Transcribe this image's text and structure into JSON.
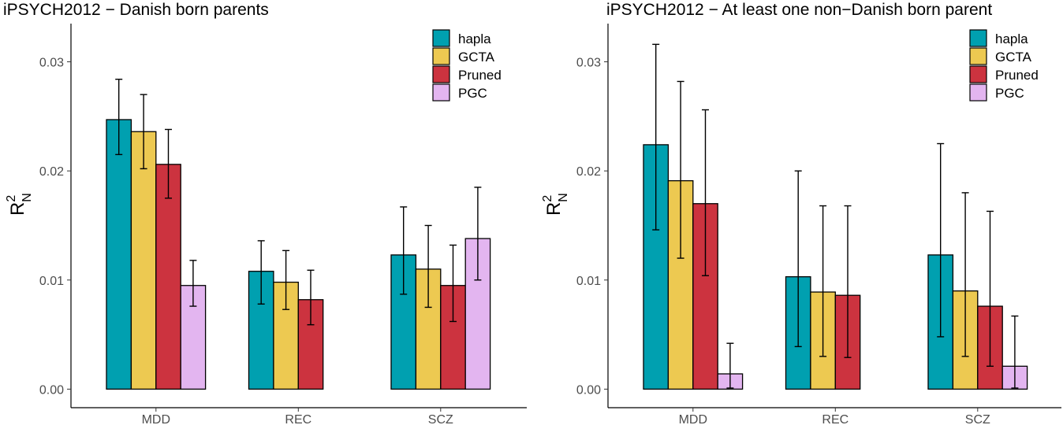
{
  "chart_data": [
    {
      "type": "bar",
      "title": "iPSYCH2012 − Danish born parents",
      "xlabel": "",
      "ylabel": "R",
      "ylabel_sup": "2",
      "ylabel_sub": "N",
      "categories": [
        "MDD",
        "REC",
        "SCZ"
      ],
      "yticks": [
        0.0,
        0.01,
        0.02,
        0.03
      ],
      "ytick_labels": [
        "0.00",
        "0.01",
        "0.02",
        "0.03"
      ],
      "ylim": [
        -0.0017,
        0.0335
      ],
      "grid": false,
      "legend_position": "top-right",
      "series": [
        {
          "name": "hapla",
          "color": "#00A0B0",
          "values": [
            0.0247,
            0.0108,
            0.0123
          ],
          "lower": [
            0.0215,
            0.0078,
            0.0087
          ],
          "upper": [
            0.0284,
            0.0136,
            0.0167
          ]
        },
        {
          "name": "GCTA",
          "color": "#EDC951",
          "values": [
            0.0236,
            0.0098,
            0.011
          ],
          "lower": [
            0.0202,
            0.0073,
            0.0075
          ],
          "upper": [
            0.027,
            0.0127,
            0.015
          ]
        },
        {
          "name": "Pruned",
          "color": "#CC333F",
          "values": [
            0.0206,
            0.0082,
            0.0095
          ],
          "lower": [
            0.0175,
            0.0059,
            0.0062
          ],
          "upper": [
            0.0238,
            0.0109,
            0.0132
          ]
        },
        {
          "name": "PGC",
          "color": "#E3B5F0",
          "values": [
            0.0095,
            null,
            0.0138
          ],
          "lower": [
            0.0076,
            null,
            0.01
          ],
          "upper": [
            0.0118,
            null,
            0.0185
          ]
        }
      ]
    },
    {
      "type": "bar",
      "title": "iPSYCH2012 − At least one non−Danish born parent",
      "xlabel": "",
      "ylabel": "R",
      "ylabel_sup": "2",
      "ylabel_sub": "N",
      "categories": [
        "MDD",
        "REC",
        "SCZ"
      ],
      "yticks": [
        0.0,
        0.01,
        0.02,
        0.03
      ],
      "ytick_labels": [
        "0.00",
        "0.01",
        "0.02",
        "0.03"
      ],
      "ylim": [
        -0.0017,
        0.0335
      ],
      "grid": false,
      "legend_position": "top-right",
      "series": [
        {
          "name": "hapla",
          "color": "#00A0B0",
          "values": [
            0.0224,
            0.0103,
            0.0123
          ],
          "lower": [
            0.0146,
            0.0039,
            0.0048
          ],
          "upper": [
            0.0316,
            0.02,
            0.0225
          ]
        },
        {
          "name": "GCTA",
          "color": "#EDC951",
          "values": [
            0.0191,
            0.0089,
            0.009
          ],
          "lower": [
            0.012,
            0.003,
            0.003
          ],
          "upper": [
            0.0282,
            0.0168,
            0.018
          ]
        },
        {
          "name": "Pruned",
          "color": "#CC333F",
          "values": [
            0.017,
            0.0086,
            0.0076
          ],
          "lower": [
            0.0104,
            0.0029,
            0.0021
          ],
          "upper": [
            0.0256,
            0.0168,
            0.0163
          ]
        },
        {
          "name": "PGC",
          "color": "#E3B5F0",
          "values": [
            0.0014,
            null,
            0.0021
          ],
          "lower": [
            0.0001,
            null,
            0.0001
          ],
          "upper": [
            0.0042,
            null,
            0.0067
          ]
        }
      ]
    }
  ]
}
